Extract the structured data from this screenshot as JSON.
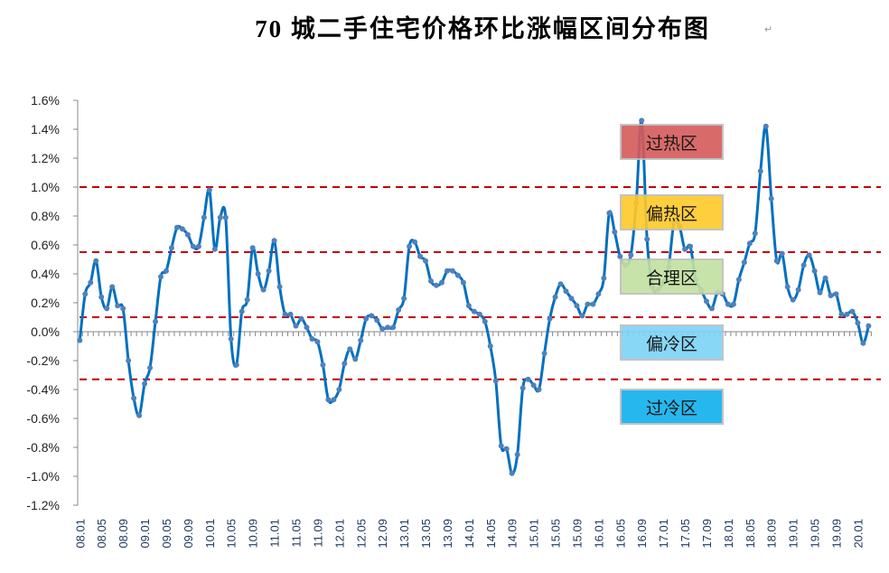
{
  "chart_data": {
    "type": "line",
    "title": "70 城二手住宅价格环比涨幅区间分布图",
    "xlabel": "",
    "ylabel": "",
    "ylim": [
      -1.2,
      1.6
    ],
    "y_ticks": [
      "1.6%",
      "1.4%",
      "1.2%",
      "1.0%",
      "0.8%",
      "0.6%",
      "0.4%",
      "0.2%",
      "0.0%",
      "-0.2%",
      "-0.4%",
      "-0.6%",
      "-0.8%",
      "-1.0%",
      "-1.2%"
    ],
    "x_tick_labels": [
      "08.01",
      "08.05",
      "08.09",
      "09.01",
      "09.05",
      "09.09",
      "10.01",
      "10.05",
      "10.09",
      "11.01",
      "11.05",
      "11.09",
      "12.01",
      "12.05",
      "12.09",
      "13.01",
      "13.05",
      "13.09",
      "14.01",
      "14.05",
      "14.09",
      "15.01",
      "15.05",
      "15.09",
      "16.01",
      "16.05",
      "16.09",
      "17.01",
      "17.05",
      "17.09",
      "18.01",
      "18.05",
      "18.09",
      "19.01",
      "19.05",
      "19.09",
      "20.01"
    ],
    "categories": [
      "08.01",
      "08.02",
      "08.03",
      "08.04",
      "08.05",
      "08.06",
      "08.07",
      "08.08",
      "08.09",
      "08.10",
      "08.11",
      "08.12",
      "09.01",
      "09.02",
      "09.03",
      "09.04",
      "09.05",
      "09.06",
      "09.07",
      "09.08",
      "09.09",
      "09.10",
      "09.11",
      "09.12",
      "10.01",
      "10.02",
      "10.03",
      "10.04",
      "10.05",
      "10.06",
      "10.07",
      "10.08",
      "10.09",
      "10.10",
      "10.11",
      "10.12",
      "11.01",
      "11.02",
      "11.03",
      "11.04",
      "11.05",
      "11.06",
      "11.07",
      "11.08",
      "11.09",
      "11.10",
      "11.11",
      "11.12",
      "12.01",
      "12.02",
      "12.03",
      "12.04",
      "12.05",
      "12.06",
      "12.07",
      "12.08",
      "12.09",
      "12.10",
      "12.11",
      "12.12",
      "13.01",
      "13.02",
      "13.03",
      "13.04",
      "13.05",
      "13.06",
      "13.07",
      "13.08",
      "13.09",
      "13.10",
      "13.11",
      "13.12",
      "14.01",
      "14.02",
      "14.03",
      "14.04",
      "14.05",
      "14.06",
      "14.07",
      "14.08",
      "14.09",
      "14.10",
      "14.11",
      "14.12",
      "15.01",
      "15.02",
      "15.03",
      "15.04",
      "15.05",
      "15.06",
      "15.07",
      "15.08",
      "15.09",
      "15.10",
      "15.11",
      "15.12",
      "16.01",
      "16.02",
      "16.03",
      "16.04",
      "16.05",
      "16.06",
      "16.07",
      "16.08",
      "16.09",
      "16.10",
      "16.11",
      "16.12",
      "17.01",
      "17.02",
      "17.03",
      "17.04",
      "17.05",
      "17.06",
      "17.07",
      "17.08",
      "17.09",
      "17.10",
      "17.11",
      "17.12",
      "18.01",
      "18.02",
      "18.03",
      "18.04",
      "18.05",
      "18.06",
      "18.07",
      "18.08",
      "18.09",
      "18.10",
      "18.11",
      "18.12",
      "19.01",
      "19.02",
      "19.03",
      "19.04",
      "19.05",
      "19.06",
      "19.07",
      "19.08",
      "19.09",
      "19.10",
      "19.11",
      "19.12",
      "20.01",
      "20.02",
      "20.03"
    ],
    "series": [
      {
        "values": [
          -0.06,
          0.26,
          0.34,
          0.49,
          0.24,
          0.16,
          0.31,
          0.18,
          0.16,
          -0.2,
          -0.46,
          -0.58,
          -0.36,
          -0.25,
          0.07,
          0.38,
          0.42,
          0.58,
          0.72,
          0.71,
          0.67,
          0.59,
          0.59,
          0.79,
          0.98,
          0.57,
          0.79,
          0.79,
          -0.05,
          -0.23,
          0.14,
          0.22,
          0.58,
          0.4,
          0.29,
          0.42,
          0.63,
          0.31,
          0.12,
          0.12,
          0.04,
          0.09,
          0.03,
          -0.05,
          -0.07,
          -0.23,
          -0.47,
          -0.47,
          -0.4,
          -0.22,
          -0.12,
          -0.19,
          -0.06,
          0.09,
          0.11,
          0.08,
          0.02,
          0.03,
          0.03,
          0.15,
          0.23,
          0.59,
          0.62,
          0.52,
          0.49,
          0.35,
          0.32,
          0.34,
          0.42,
          0.42,
          0.39,
          0.34,
          0.18,
          0.14,
          0.12,
          0.07,
          -0.1,
          -0.34,
          -0.79,
          -0.81,
          -0.98,
          -0.85,
          -0.39,
          -0.33,
          -0.37,
          -0.4,
          -0.15,
          0.09,
          0.24,
          0.33,
          0.28,
          0.23,
          0.18,
          0.11,
          0.19,
          0.19,
          0.26,
          0.37,
          0.82,
          0.69,
          0.52,
          0.46,
          0.53,
          0.89,
          1.46,
          0.64,
          0.31,
          0.29,
          0.34,
          0.45,
          0.76,
          0.73,
          0.57,
          0.59,
          0.36,
          0.29,
          0.21,
          0.16,
          0.27,
          0.26,
          0.19,
          0.19,
          0.36,
          0.48,
          0.61,
          0.68,
          1.11,
          1.42,
          0.92,
          0.49,
          0.54,
          0.31,
          0.22,
          0.29,
          0.46,
          0.53,
          0.42,
          0.27,
          0.37,
          0.25,
          0.26,
          0.12,
          0.12,
          0.14,
          0.06,
          -0.08,
          0.04
        ],
        "color": "#0070c0",
        "marker_color": "#4f81bd"
      }
    ],
    "threshold_lines": [
      1.0,
      0.55,
      0.1,
      -0.33
    ],
    "threshold_color": "#c00000",
    "grid": false,
    "zones": [
      {
        "label": "过热区",
        "color": "#d55a5a"
      },
      {
        "label": "偏热区",
        "color": "#ffc928"
      },
      {
        "label": "合理区",
        "color": "#c3e0a0"
      },
      {
        "label": "偏冷区",
        "color": "#7dd3f7"
      },
      {
        "label": "过冷区",
        "color": "#10b0ee"
      }
    ]
  },
  "extra": {
    "paragraph_mark": "↵"
  }
}
